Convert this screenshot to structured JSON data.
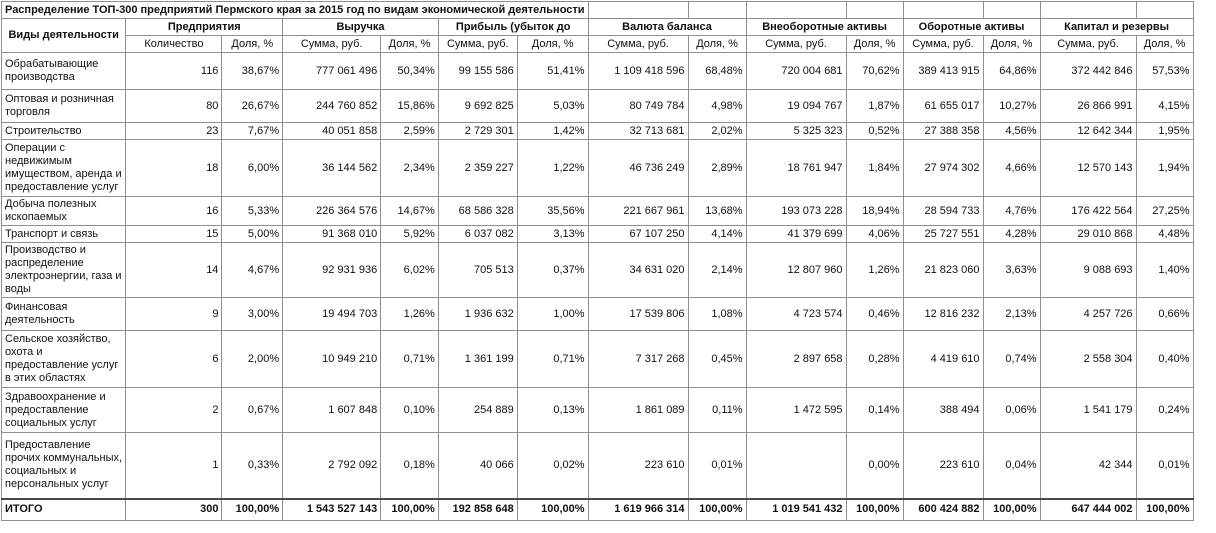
{
  "title": "Распределение ТОП-300 предприятий Пермского края за 2015 год по видам экономической деятельности",
  "table": {
    "activity_header": "Виды деятельности",
    "groups": [
      {
        "label": "Предприятия",
        "sub": [
          "Количество",
          "Доля, %"
        ]
      },
      {
        "label": "Выручка",
        "sub": [
          "Сумма, руб.",
          "Доля, %"
        ]
      },
      {
        "label": "Прибыль (убыток до",
        "sub": [
          "Сумма, руб.",
          "Доля, %"
        ]
      },
      {
        "label": "Валюта баланса",
        "sub": [
          "Сумма, руб.",
          "Доля, %"
        ]
      },
      {
        "label": "Внеоборотные активы",
        "sub": [
          "Сумма, руб.",
          "Доля, %"
        ]
      },
      {
        "label": "Оборотные активы",
        "sub": [
          "Сумма, руб.",
          "Доля, %"
        ]
      },
      {
        "label": "Капитал и резервы",
        "sub": [
          "Сумма, руб.",
          "Доля, %"
        ]
      }
    ],
    "rows": [
      {
        "activity": "Обрабатывающие производства",
        "values": [
          "116",
          "38,67%",
          "777 061 496",
          "50,34%",
          "99 155 586",
          "51,41%",
          "1 109 418 596",
          "68,48%",
          "720 004 681",
          "70,62%",
          "389 413 915",
          "64,86%",
          "372 442 846",
          "57,53%"
        ]
      },
      {
        "activity": "Оптовая и розничная торговля",
        "values": [
          "80",
          "26,67%",
          "244 760 852",
          "15,86%",
          "9 692 825",
          "5,03%",
          "80 749 784",
          "4,98%",
          "19 094 767",
          "1,87%",
          "61 655 017",
          "10,27%",
          "26 866 991",
          "4,15%"
        ]
      },
      {
        "activity": "Строительство",
        "values": [
          "23",
          "7,67%",
          "40 051 858",
          "2,59%",
          "2 729 301",
          "1,42%",
          "32 713 681",
          "2,02%",
          "5 325 323",
          "0,52%",
          "27 388 358",
          "4,56%",
          "12 642 344",
          "1,95%"
        ]
      },
      {
        "activity": "Операции с недвижимым имуществом, аренда и предоставление услуг",
        "values": [
          "18",
          "6,00%",
          "36 144 562",
          "2,34%",
          "2 359 227",
          "1,22%",
          "46 736 249",
          "2,89%",
          "18 761 947",
          "1,84%",
          "27 974 302",
          "4,66%",
          "12 570 143",
          "1,94%"
        ]
      },
      {
        "activity": "Добыча полезных ископаемых",
        "values": [
          "16",
          "5,33%",
          "226 364 576",
          "14,67%",
          "68 586 328",
          "35,56%",
          "221 667 961",
          "13,68%",
          "193 073 228",
          "18,94%",
          "28 594 733",
          "4,76%",
          "176 422 564",
          "27,25%"
        ]
      },
      {
        "activity": "Транспорт и связь",
        "values": [
          "15",
          "5,00%",
          "91 368 010",
          "5,92%",
          "6 037 082",
          "3,13%",
          "67 107 250",
          "4,14%",
          "41 379 699",
          "4,06%",
          "25 727 551",
          "4,28%",
          "29 010 868",
          "4,48%"
        ]
      },
      {
        "activity": "Производство и распределение электроэнергии, газа и воды",
        "values": [
          "14",
          "4,67%",
          "92 931 936",
          "6,02%",
          "705 513",
          "0,37%",
          "34 631 020",
          "2,14%",
          "12 807 960",
          "1,26%",
          "21 823 060",
          "3,63%",
          "9 088 693",
          "1,40%"
        ]
      },
      {
        "activity": "Финансовая деятельность",
        "values": [
          "9",
          "3,00%",
          "19 494 703",
          "1,26%",
          "1 936 632",
          "1,00%",
          "17 539 806",
          "1,08%",
          "4 723 574",
          "0,46%",
          "12 816 232",
          "2,13%",
          "4 257 726",
          "0,66%"
        ]
      },
      {
        "activity": "Сельское хозяйство, охота и предоставление услуг в этих областях",
        "values": [
          "6",
          "2,00%",
          "10 949 210",
          "0,71%",
          "1 361 199",
          "0,71%",
          "7 317 268",
          "0,45%",
          "2 897 658",
          "0,28%",
          "4 419 610",
          "0,74%",
          "2 558 304",
          "0,40%"
        ]
      },
      {
        "activity": "Здравоохранение и предоставление социальных услуг",
        "values": [
          "2",
          "0,67%",
          "1 607 848",
          "0,10%",
          "254 889",
          "0,13%",
          "1 861 089",
          "0,11%",
          "1 472 595",
          "0,14%",
          "388 494",
          "0,06%",
          "1 541 179",
          "0,24%"
        ]
      },
      {
        "activity": "Предоставление прочих коммунальных, социальных и персональных  услуг",
        "values": [
          "1",
          "0,33%",
          "2 792 092",
          "0,18%",
          "40 066",
          "0,02%",
          "223 610",
          "0,01%",
          "",
          "0,00%",
          "223 610",
          "0,04%",
          "42 344",
          "0,01%"
        ]
      }
    ],
    "total": {
      "activity": "ИТОГО",
      "values": [
        "300",
        "100,00%",
        "1 543 527 143",
        "100,00%",
        "192 858 648",
        "100,00%",
        "1 619 966 314",
        "100,00%",
        "1 019 541 432",
        "100,00%",
        "600 424 882",
        "100,00%",
        "647 444 002",
        "100,00%"
      ]
    }
  }
}
